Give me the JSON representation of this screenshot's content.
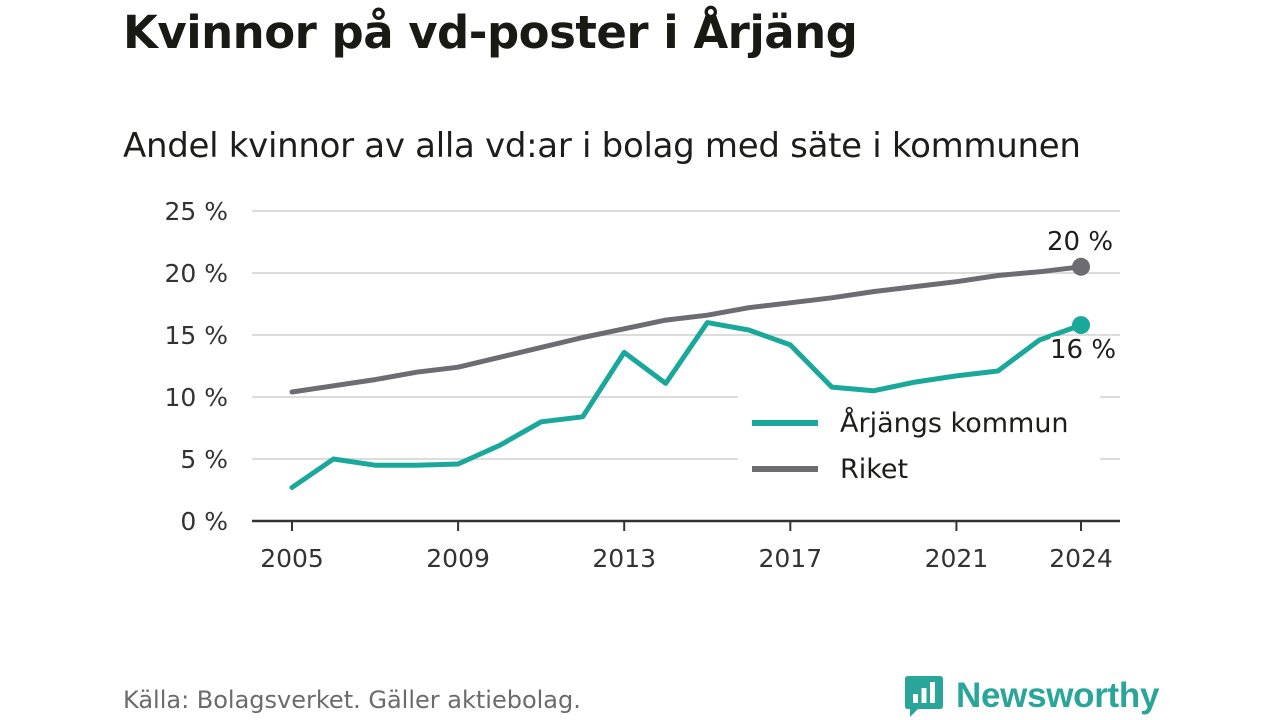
{
  "title": "Kvinnor på vd-poster i Årjäng",
  "subtitle": "Andel kvinnor av alla vd:ar i bolag med säte i kommunen",
  "source": "Källa: Bolagsverket. Gäller aktiebolag.",
  "brand": {
    "name": "Newsworthy",
    "icon": "newsworthy-bar-chart-icon"
  },
  "colors": {
    "kommun": "#1aa89b",
    "riket": "#6d6c72",
    "grid": "#dcdcdc",
    "axis": "#333333",
    "brand": "#2aa59a"
  },
  "chart_data": {
    "type": "line",
    "x": [
      2005,
      2006,
      2007,
      2008,
      2009,
      2010,
      2011,
      2012,
      2013,
      2014,
      2015,
      2016,
      2017,
      2018,
      2019,
      2020,
      2021,
      2022,
      2023,
      2024
    ],
    "x_ticks": [
      "2005",
      "2009",
      "2013",
      "2017",
      "2021",
      "2024"
    ],
    "y_ticks": [
      "0 %",
      "5 %",
      "10 %",
      "15 %",
      "20 %",
      "25 %"
    ],
    "ylim": [
      0,
      25
    ],
    "grid": true,
    "legend_position": "right",
    "series": [
      {
        "name": "Årjängs kommun",
        "color": "#1aa89b",
        "values": [
          2.7,
          5.0,
          4.5,
          4.5,
          4.6,
          6.1,
          8.0,
          8.4,
          13.6,
          11.1,
          16.0,
          15.4,
          14.2,
          10.8,
          10.5,
          11.2,
          11.7,
          12.1,
          14.6,
          15.8
        ],
        "end_label": "16 %"
      },
      {
        "name": "Riket",
        "color": "#6d6c72",
        "values": [
          10.4,
          10.9,
          11.4,
          12.0,
          12.4,
          13.2,
          14.0,
          14.8,
          15.5,
          16.2,
          16.6,
          17.2,
          17.6,
          18.0,
          18.5,
          18.9,
          19.3,
          19.8,
          20.1,
          20.5
        ],
        "end_label": "20 %"
      }
    ]
  }
}
